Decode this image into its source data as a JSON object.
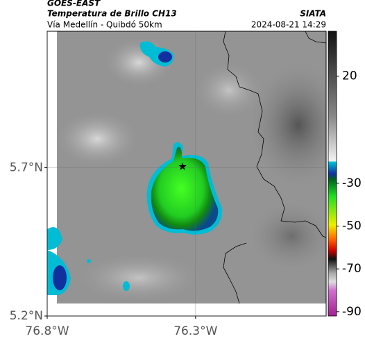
{
  "header": {
    "source": "GOES-EAST",
    "title": "Temperatura de Brillo CH13",
    "subtitle": "Vía Medellín - Quibdó 50km",
    "agency": "SIATA",
    "timestamp": "2024-08-21 14:29"
  },
  "map": {
    "xlim": [
      -76.8,
      -75.86
    ],
    "ylim": [
      5.2,
      6.16
    ],
    "xticks": [
      {
        "value": -76.8,
        "label": "76.8°W"
      },
      {
        "value": -76.3,
        "label": "76.3°W"
      }
    ],
    "yticks": [
      {
        "value": 5.2,
        "label": "5.2°N"
      },
      {
        "value": 5.7,
        "label": "5.7°N"
      }
    ],
    "grid": true
  },
  "colorbar": {
    "lim": [
      -92,
      41
    ],
    "ticks": [
      20,
      -30,
      -50,
      -70,
      -90
    ]
  }
}
